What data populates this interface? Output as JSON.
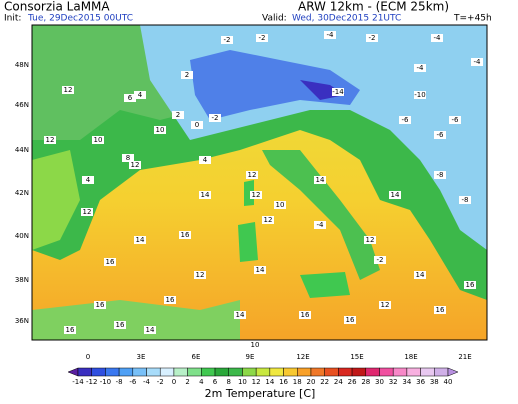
{
  "header": {
    "source": "Consorzia LaMMA",
    "model": "ARW 12km - (ECM 25km)",
    "init_label": "Init:",
    "init": "Tue, 29Dec2015 00UTC",
    "valid_label": "Valid:",
    "valid": "Wed, 30Dec2015 21UTC",
    "lead": "T=+45h"
  },
  "map": {
    "lat_labels": [
      "48N",
      "46N",
      "44N",
      "42N",
      "40N",
      "38N",
      "36N"
    ],
    "lon_labels": [
      "0",
      "3E",
      "6E",
      "9E",
      "12E",
      "15E",
      "18E",
      "21E"
    ],
    "value_labels": [
      "-2",
      "-2",
      "-4",
      "-2",
      "-4",
      "-4",
      "2",
      "4",
      "0",
      "-2",
      "-14",
      "-4",
      "-6",
      "-6",
      "12",
      "12",
      "10",
      "6",
      "8",
      "4",
      "12",
      "2",
      "10",
      "4",
      "12",
      "10",
      "-8",
      "-8",
      "-6",
      "-10",
      "12",
      "14",
      "12",
      "12",
      "14",
      "14",
      "-4",
      "12",
      "16",
      "14",
      "16",
      "16",
      "12",
      "14",
      "16",
      "12",
      "14",
      "-2",
      "16",
      "16",
      "16",
      "14",
      "16",
      "10",
      "16",
      "14",
      "16"
    ]
  },
  "colorbar": {
    "ticks": [
      -14,
      -12,
      -10,
      -8,
      -6,
      -4,
      -2,
      0,
      2,
      4,
      6,
      8,
      10,
      12,
      14,
      16,
      18,
      20,
      22,
      24,
      26,
      28,
      30,
      32,
      34,
      36,
      38,
      40
    ],
    "colors": [
      "#5a1fa0",
      "#3a2fc0",
      "#2f4fe0",
      "#3a78f0",
      "#4fa0f5",
      "#78c0f8",
      "#a8dcfa",
      "#d8f0ff",
      "#b8f0c8",
      "#7fe08a",
      "#40c850",
      "#2aa83a",
      "#3cb84a",
      "#8cd848",
      "#c8e840",
      "#f0e840",
      "#f8c830",
      "#f8a028",
      "#f07828",
      "#e85020",
      "#d82820",
      "#c01818",
      "#e02870",
      "#f050a0",
      "#f888c8",
      "#f8b0e0",
      "#e8c8f0",
      "#d0b0e8",
      "#b890e0"
    ],
    "title": "2m Temperature [C]"
  }
}
